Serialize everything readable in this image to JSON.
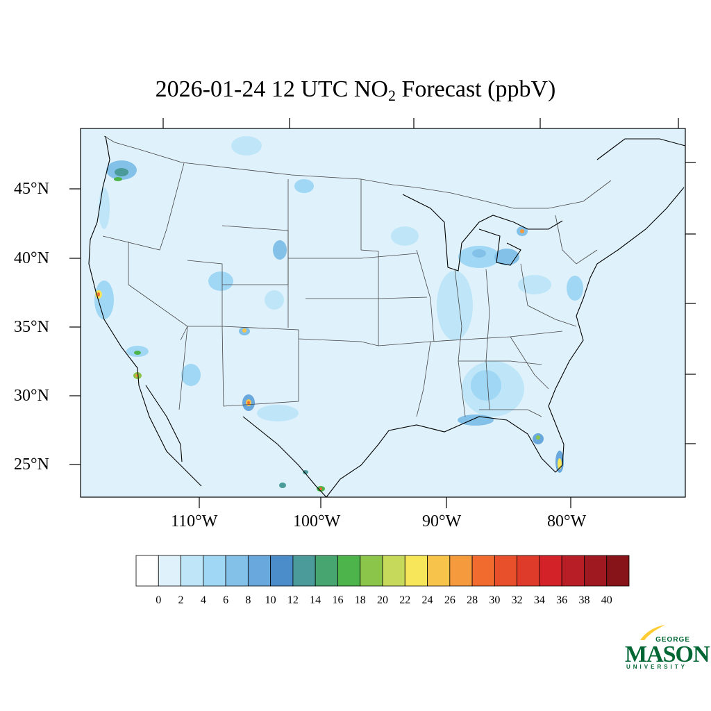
{
  "title": {
    "prefix": "2026-01-24 12 UTC NO",
    "subscript": "2",
    "suffix": " Forecast (ppbV)"
  },
  "map": {
    "region": "Contiguous United States",
    "background_color": "#dff1fb",
    "lat_labels": [
      "45°N",
      "40°N",
      "35°N",
      "30°N",
      "25°N"
    ],
    "lon_labels": [
      "110°W",
      "100°W",
      "90°W",
      "80°W"
    ]
  },
  "colorbar": {
    "labels": [
      "0",
      "2",
      "4",
      "6",
      "8",
      "10",
      "12",
      "14",
      "16",
      "18",
      "20",
      "22",
      "24",
      "26",
      "28",
      "30",
      "32",
      "34",
      "36",
      "38",
      "40"
    ],
    "colors": [
      "#ffffff",
      "#dff1fb",
      "#bfe6f8",
      "#a0d7f4",
      "#84c1e8",
      "#68a8dc",
      "#4b8ccb",
      "#4a9b99",
      "#47a66f",
      "#4cb44a",
      "#8bc54a",
      "#c6d95a",
      "#f7e65a",
      "#f7c34a",
      "#f69a3e",
      "#f16b2f",
      "#e8502c",
      "#df3b2a",
      "#d32329",
      "#b81e25",
      "#9e1a20",
      "#861418"
    ]
  },
  "logo": {
    "line1": "GEORGE",
    "line2": "MASON",
    "line3": "UNIVERSITY",
    "color": "#006633",
    "accent_color": "#ffcc33"
  }
}
